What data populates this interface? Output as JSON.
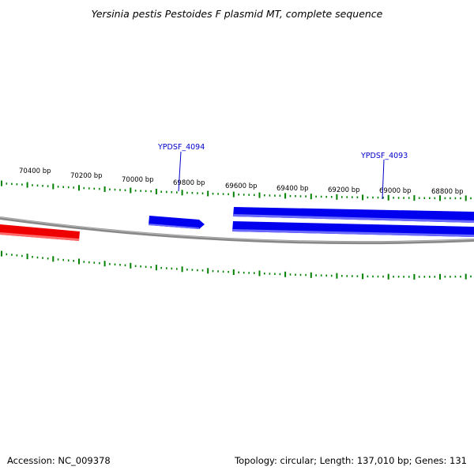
{
  "title": "Yersinia pestis Pestoides F plasmid MT, complete sequence",
  "footer": {
    "accession": "Accession: NC_009378",
    "summary": "Topology: circular; Length: 137,010 bp; Genes: 131"
  },
  "map": {
    "tick_labels": [
      "70400 bp",
      "70200 bp",
      "70000 bp",
      "69800 bp",
      "69600 bp",
      "69400 bp",
      "69200 bp",
      "69000 bp",
      "68800 bp"
    ],
    "gene_labels": [
      "YPDSF_4094",
      "YPDSF_4093"
    ],
    "colors": {
      "backbone": "#888888",
      "forward_gene": "#0000ee",
      "reverse_gene": "#ee0000",
      "ticks": "#008000",
      "gene_label": "#0000cc"
    }
  }
}
